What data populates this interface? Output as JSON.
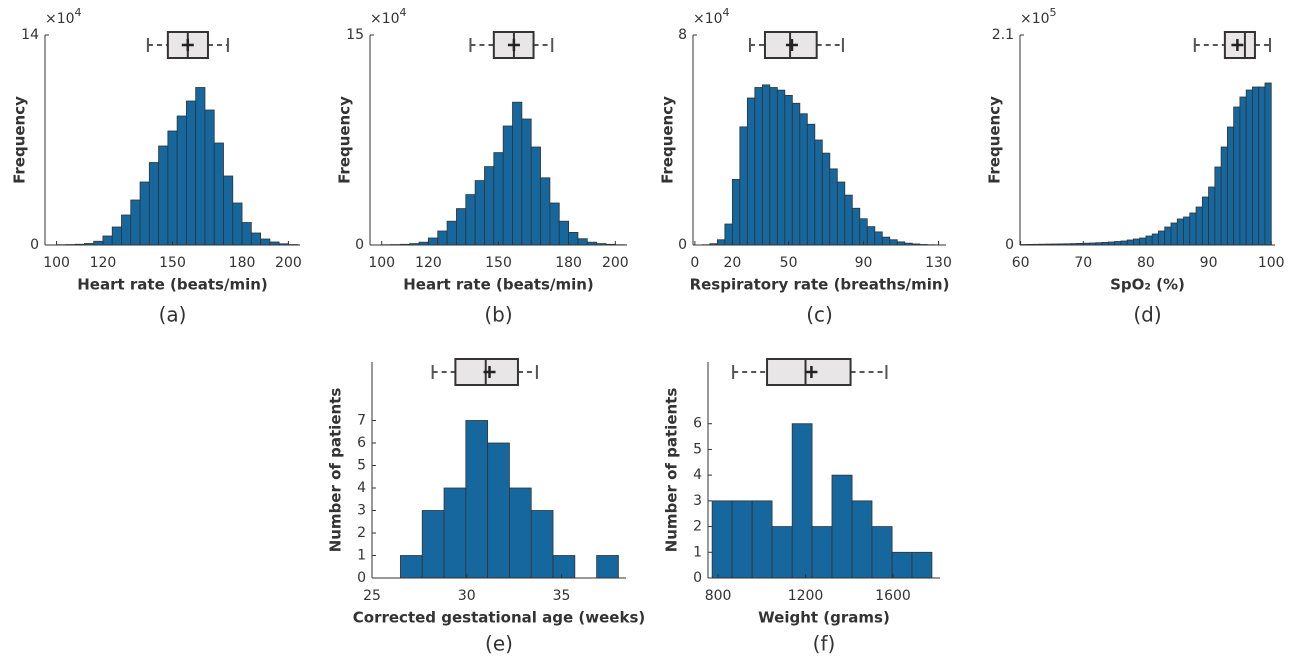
{
  "chart_data": [
    {
      "type": "histogram",
      "caption": "(a)",
      "xlabel": "Heart rate (beats/min)",
      "ylabel": "Frequency",
      "y_multiplier": "×10",
      "y_exponent": "4",
      "color": "#15679e",
      "bins": [
        100,
        104,
        108,
        112,
        116,
        120,
        124,
        128,
        132,
        136,
        140,
        144,
        148,
        152,
        156,
        160,
        164,
        168,
        172,
        176,
        180,
        184,
        188,
        192,
        196,
        200,
        204
      ],
      "counts": [
        0.02,
        0.03,
        0.05,
        0.1,
        0.25,
        0.6,
        1.2,
        2.0,
        3.0,
        4.2,
        5.5,
        6.6,
        7.6,
        8.6,
        9.6,
        10.5,
        9.0,
        6.8,
        4.6,
        2.8,
        1.5,
        0.8,
        0.4,
        0.2,
        0.08,
        0.03
      ],
      "xlim": [
        95,
        205
      ],
      "xticks": [
        100,
        120,
        150,
        180,
        200
      ],
      "ylim": [
        0,
        14
      ],
      "yticks": [
        0,
        14
      ],
      "boxplot": {
        "whisker_low": 139.4,
        "q1": 148,
        "median": 156.6,
        "q3": 165.3,
        "whisker_high": 173.9,
        "mean": 156.6
      }
    },
    {
      "type": "histogram",
      "caption": "(b)",
      "xlabel": "Heart rate (beats/min)",
      "ylabel": "Frequency",
      "y_multiplier": "×10",
      "y_exponent": "4",
      "color": "#15679e",
      "bins": [
        100,
        104,
        108,
        112,
        116,
        120,
        124,
        128,
        132,
        136,
        140,
        144,
        148,
        152,
        156,
        160,
        164,
        168,
        172,
        176,
        180,
        184,
        188,
        192,
        196,
        200,
        204
      ],
      "counts": [
        0.02,
        0.03,
        0.05,
        0.1,
        0.2,
        0.5,
        1.0,
        1.7,
        2.6,
        3.6,
        4.6,
        5.6,
        6.6,
        8.5,
        10.2,
        9.0,
        7.0,
        4.8,
        3.0,
        1.7,
        0.9,
        0.45,
        0.2,
        0.1,
        0.05,
        0.02
      ],
      "xlim": [
        95,
        205
      ],
      "xticks": [
        100,
        120,
        150,
        180,
        200
      ],
      "ylim": [
        0,
        15
      ],
      "yticks": [
        0,
        15
      ],
      "boxplot": {
        "whisker_low": 138,
        "q1": 148,
        "median": 156.6,
        "q3": 165,
        "whisker_high": 173,
        "mean": 156.6
      }
    },
    {
      "type": "histogram",
      "caption": "(c)",
      "xlabel": "Respiratory rate (breaths/min)",
      "ylabel": "Frequency",
      "y_multiplier": "×10",
      "y_exponent": "4",
      "color": "#15679e",
      "bins": [
        0,
        4,
        8,
        12,
        16,
        20,
        24,
        28,
        32,
        36,
        40,
        44,
        48,
        52,
        56,
        60,
        64,
        68,
        72,
        76,
        80,
        84,
        88,
        92,
        96,
        100,
        104,
        108,
        112,
        116,
        120,
        124,
        128,
        132
      ],
      "counts": [
        0,
        0.01,
        0.05,
        0.2,
        0.8,
        2.5,
        4.5,
        5.6,
        6.0,
        6.1,
        6.0,
        5.9,
        5.7,
        5.4,
        5.0,
        4.6,
        4.0,
        3.5,
        2.9,
        2.4,
        1.9,
        1.4,
        1.0,
        0.7,
        0.5,
        0.3,
        0.2,
        0.12,
        0.07,
        0.04,
        0.02,
        0.01,
        0.005
      ],
      "xlim": [
        -1,
        134
      ],
      "xticks": [
        0,
        20,
        50,
        90,
        130
      ],
      "ylim": [
        0,
        8
      ],
      "yticks": [
        0,
        8
      ],
      "boxplot": {
        "whisker_low": 29.4,
        "q1": 37.4,
        "median": 50.8,
        "q3": 65,
        "whisker_high": 79,
        "mean": 51.8
      }
    },
    {
      "type": "histogram",
      "caption": "(d)",
      "xlabel": "SpO₂ (%)",
      "ylabel": "Frequency",
      "y_multiplier": "×10",
      "y_exponent": "5",
      "color": "#15679e",
      "bins": [
        60,
        61,
        62,
        63,
        64,
        65,
        66,
        67,
        68,
        69,
        70,
        71,
        72,
        73,
        74,
        75,
        76,
        77,
        78,
        79,
        80,
        81,
        82,
        83,
        84,
        85,
        86,
        87,
        88,
        89,
        90,
        91,
        92,
        93,
        94,
        95,
        96,
        97,
        98,
        99,
        100
      ],
      "counts": [
        0.005,
        0.006,
        0.007,
        0.008,
        0.009,
        0.01,
        0.011,
        0.012,
        0.014,
        0.016,
        0.018,
        0.02,
        0.023,
        0.026,
        0.03,
        0.035,
        0.04,
        0.05,
        0.06,
        0.07,
        0.09,
        0.11,
        0.14,
        0.18,
        0.22,
        0.26,
        0.28,
        0.32,
        0.38,
        0.48,
        0.58,
        0.78,
        0.98,
        1.18,
        1.38,
        1.48,
        1.55,
        1.58,
        1.58,
        1.62
      ],
      "xlim": [
        59.9,
        100.6
      ],
      "xticks": [
        60,
        70,
        80,
        90,
        100
      ],
      "ylim": [
        0,
        2.1
      ],
      "yticks": [
        0,
        2.1
      ],
      "boxplot": {
        "whisker_low": 87.8,
        "q1": 92.6,
        "median": 95.8,
        "q3": 97.4,
        "whisker_high": 99.8,
        "mean": 94.6
      }
    },
    {
      "type": "histogram",
      "caption": "(e)",
      "xlabel": "Corrected gestational age (weeks)",
      "ylabel": "Number of patients",
      "color": "#15679e",
      "bins": [
        26.5,
        27.65,
        28.8,
        29.95,
        31.1,
        32.25,
        33.4,
        34.55,
        35.7,
        36.85,
        38
      ],
      "counts": [
        1,
        3,
        4,
        7,
        6,
        4,
        3,
        1,
        0,
        1
      ],
      "xlim": [
        25,
        38.4
      ],
      "xticks": [
        25,
        30,
        35
      ],
      "ylim": [
        0,
        9.6
      ],
      "yticks": [
        0,
        1,
        2,
        3,
        4,
        5,
        6,
        7
      ],
      "boxplot": {
        "whisker_low": 28.2,
        "q1": 29.4,
        "median": 31.0,
        "q3": 32.7,
        "whisker_high": 33.7,
        "mean": 31.2
      }
    },
    {
      "type": "histogram",
      "caption": "(f)",
      "xlabel": "Weight (grams)",
      "ylabel": "Number of patients",
      "color": "#15679e",
      "bins": [
        773,
        864,
        956,
        1047,
        1139,
        1230,
        1321,
        1413,
        1504,
        1596,
        1687,
        1778
      ],
      "counts": [
        3,
        3,
        3,
        2,
        6,
        2,
        4,
        3,
        2,
        1,
        1
      ],
      "xlim": [
        754,
        1815
      ],
      "xticks": [
        800,
        1200,
        1600
      ],
      "ylim": [
        0,
        8.4
      ],
      "yticks": [
        0,
        1,
        2,
        3,
        4,
        5,
        6
      ],
      "boxplot": {
        "whisker_low": 869,
        "q1": 1024,
        "median": 1200,
        "q3": 1406,
        "whisker_high": 1570,
        "mean": 1227
      }
    }
  ]
}
